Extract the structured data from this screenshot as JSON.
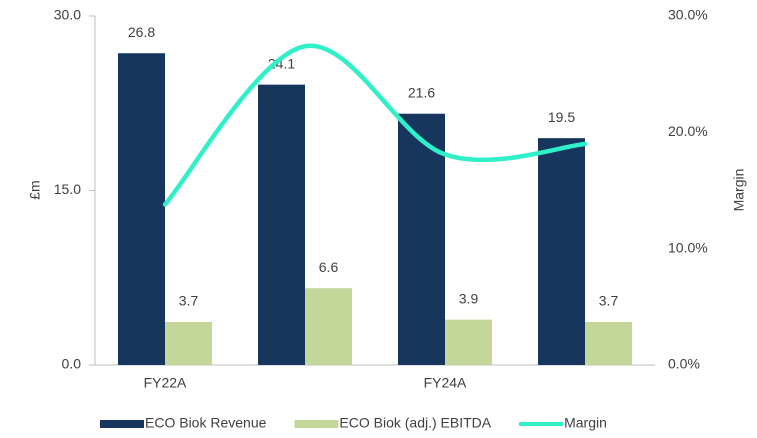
{
  "chart_data": {
    "type": "bar",
    "categories": [
      "FY22A",
      null,
      "FY24A",
      null
    ],
    "series": [
      {
        "name": "ECO Biok Revenue",
        "color": "#17365d",
        "values": [
          26.8,
          24.1,
          21.6,
          19.5
        ]
      },
      {
        "name": "ECO Biok (adj.) EBITDA",
        "color": "#c4d79b",
        "values": [
          3.7,
          6.6,
          3.9,
          3.7
        ]
      },
      {
        "name": "Margin",
        "type": "line",
        "axis": "y2",
        "color": "#2ff0c8",
        "values": [
          13.8,
          27.4,
          18.1,
          19.0
        ]
      }
    ],
    "ylabel": "£m",
    "y2label": "Margin",
    "ylim": [
      0,
      30
    ],
    "yticks": [
      {
        "value": 0,
        "label": "0.0"
      },
      {
        "value": 15,
        "label": "15.0"
      },
      {
        "value": 30,
        "label": "30.0"
      }
    ],
    "y2lim": [
      0,
      30
    ],
    "y2ticks": [
      {
        "value": 0,
        "label": "0.0%"
      },
      {
        "value": 10,
        "label": "10.0%"
      },
      {
        "value": 20,
        "label": "20.0%"
      },
      {
        "value": 30,
        "label": "30.0%"
      }
    ],
    "legend": "bottom"
  }
}
